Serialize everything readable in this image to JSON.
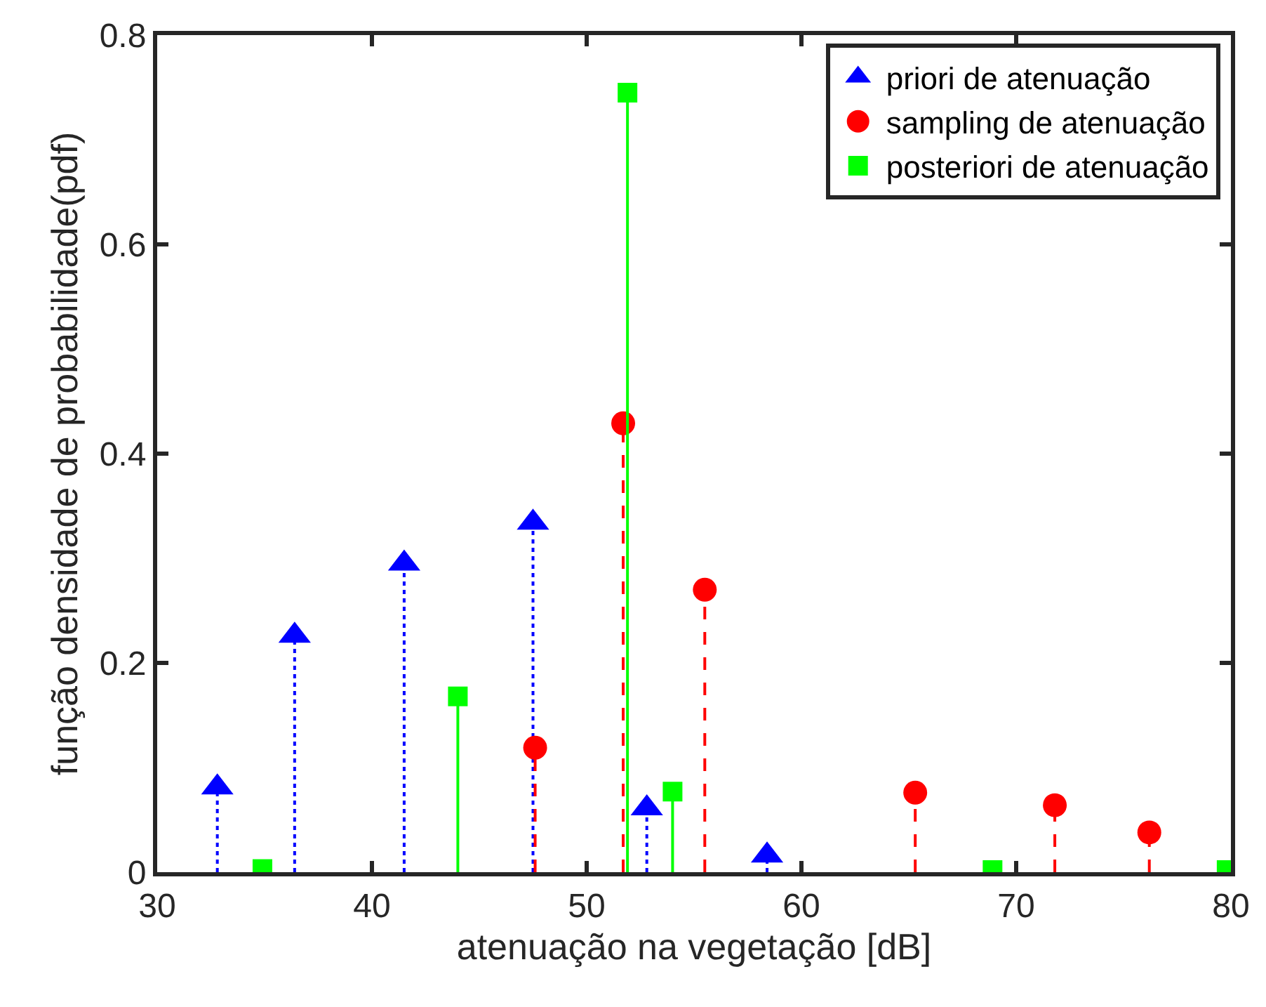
{
  "chart_data": {
    "type": "lollipop",
    "xlabel": "atenuação na vegetação [dB]",
    "ylabel": "função densidade de probabilidade(pdf)",
    "xlim": [
      30,
      80
    ],
    "xticks": [
      30,
      40,
      50,
      60,
      70,
      80
    ],
    "ylim": [
      0,
      0.8
    ],
    "yticks": [
      0,
      0.2,
      0.4,
      0.6,
      0.8
    ],
    "legend": "top right",
    "series": [
      {
        "name": "priori de atenuação",
        "color": "#0000ff",
        "marker": "triangle",
        "line_style": "dotted",
        "x": [
          32.8,
          36.4,
          41.5,
          47.5,
          52.8,
          58.4
        ],
        "values": [
          0.081,
          0.226,
          0.295,
          0.334,
          0.061,
          0.016
        ]
      },
      {
        "name": "sampling de atenuação",
        "color": "#ff0000",
        "marker": "circle",
        "line_style": "dashed",
        "x": [
          47.6,
          51.7,
          55.5,
          65.3,
          71.8,
          76.2
        ],
        "values": [
          0.119,
          0.429,
          0.27,
          0.076,
          0.064,
          0.038
        ]
      },
      {
        "name": "posteriori de atenuação",
        "color": "#00ff00",
        "marker": "square",
        "line_style": "solid",
        "x": [
          34.9,
          44.0,
          51.9,
          54.0,
          68.9,
          79.8
        ],
        "values": [
          0.003,
          0.168,
          0.745,
          0.077,
          0.002,
          0.002
        ]
      }
    ]
  }
}
